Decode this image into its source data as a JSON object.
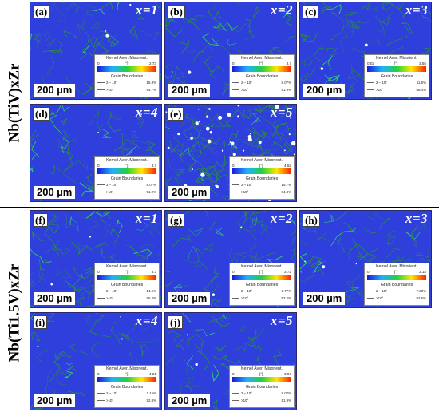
{
  "row_labels": {
    "top": "Nb(TiV)xZr",
    "bottom": "Nb(Ti1.5V)xZr"
  },
  "legend_text": {
    "title": "Kernel Aver. Misorient.",
    "mid": "[°]",
    "gb_title": "Grain Boundaries",
    "low_range": "2 – 10°",
    "high_range": ">10°"
  },
  "panels": [
    {
      "letter": "(a)",
      "x": "x=1",
      "scale": "200 µm",
      "kam_min": "0",
      "kam_max": "2.73",
      "low_pct": "15.3%",
      "high_pct": "84.7%"
    },
    {
      "letter": "(b)",
      "x": "x=2",
      "scale": "200 µm",
      "kam_min": "0",
      "kam_max": "3.7",
      "low_pct": "8.07%",
      "high_pct": "91.9%"
    },
    {
      "letter": "(c)",
      "x": "x=3",
      "scale": "200 µm",
      "kam_min": "0.02",
      "kam_max": "3.55",
      "low_pct": "11.6%",
      "high_pct": "88.4%"
    },
    {
      "letter": "(d)",
      "x": "x=4",
      "scale": "200 µm",
      "kam_min": "0",
      "kam_max": "3.7",
      "low_pct": "8.07%",
      "high_pct": "91.9%"
    },
    {
      "letter": "(e)",
      "x": "x=5",
      "scale": "200 µm",
      "kam_min": "0",
      "kam_max": "4.82",
      "low_pct": "15.7%",
      "high_pct": "84.3%"
    },
    {
      "letter": "(f)",
      "x": "x=1",
      "scale": "200 µm",
      "kam_min": "0",
      "kam_max": "3.3",
      "low_pct": "14.6%",
      "high_pct": "85.4%"
    },
    {
      "letter": "(g)",
      "x": "x=2",
      "scale": "200 µm",
      "kam_min": "0",
      "kam_max": "3.72",
      "low_pct": "6.77%",
      "high_pct": "93.2%"
    },
    {
      "letter": "(h)",
      "x": "x=3",
      "scale": "200 µm",
      "kam_min": "0",
      "kam_max": "3.14",
      "low_pct": "7.38%",
      "high_pct": "92.6%"
    },
    {
      "letter": "(i)",
      "x": "x=4",
      "scale": "200 µm",
      "kam_min": "0",
      "kam_max": "4.21",
      "low_pct": "7.15%",
      "high_pct": "92.8%"
    },
    {
      "letter": "(j)",
      "x": "x=5",
      "scale": "200 µm",
      "kam_min": "0",
      "kam_max": "3.87",
      "low_pct": "8.07%",
      "high_pct": "91.9%"
    }
  ],
  "colors": {
    "map_blue": "#2f3fdc",
    "grain_boundary": "#2c8a4a",
    "kam_high": "#2ee060"
  }
}
